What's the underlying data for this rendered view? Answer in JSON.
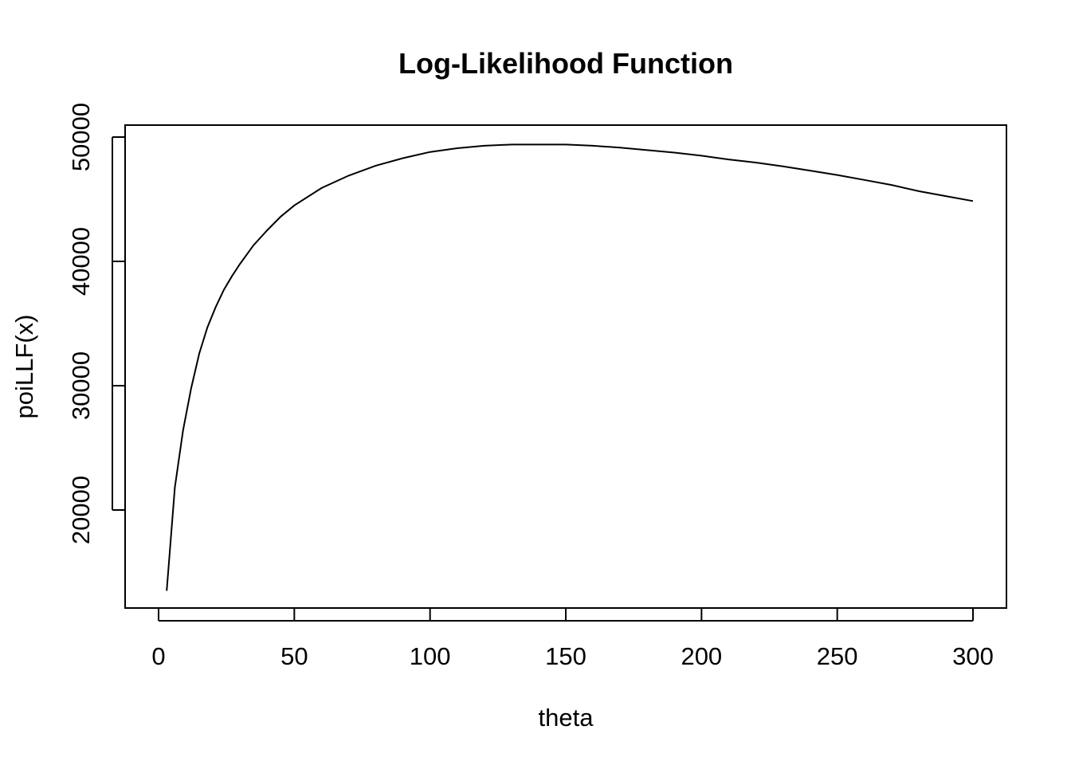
{
  "chart_data": {
    "type": "line",
    "title": "Log-Likelihood Function",
    "xlabel": "theta",
    "ylabel": "poiLLF(x)",
    "xlim": [
      0,
      300
    ],
    "ylim": [
      13500,
      50500
    ],
    "x_ticks": [
      0,
      50,
      100,
      150,
      200,
      250,
      300
    ],
    "x_tick_labels": [
      "0",
      "50",
      "100",
      "150",
      "200",
      "250",
      "300"
    ],
    "y_ticks": [
      20000,
      30000,
      40000,
      50000
    ],
    "y_tick_labels": [
      "20000",
      "30000",
      "40000",
      "50000"
    ],
    "grid": false,
    "legend": "none",
    "series": [
      {
        "x": [
          3,
          6,
          9,
          12,
          15,
          18,
          21,
          24,
          27,
          30,
          35,
          40,
          45,
          50,
          60,
          70,
          80,
          90,
          100,
          110,
          120,
          130,
          140,
          150,
          160,
          170,
          180,
          190,
          200,
          210,
          220,
          230,
          240,
          250,
          260,
          270,
          280,
          290,
          300
        ],
        "y": [
          13500,
          21800,
          26400,
          29800,
          32600,
          34700,
          36300,
          37700,
          38800,
          39800,
          41300,
          42500,
          43600,
          44500,
          45900,
          46900,
          47700,
          48300,
          48800,
          49100,
          49300,
          49400,
          49400,
          49400,
          49300,
          49150,
          48950,
          48750,
          48500,
          48200,
          47950,
          47650,
          47300,
          46950,
          46550,
          46150,
          45650,
          45250,
          44850
        ]
      }
    ],
    "colors": {
      "line": "#000000",
      "axes": "#000000",
      "background": "#ffffff"
    }
  }
}
